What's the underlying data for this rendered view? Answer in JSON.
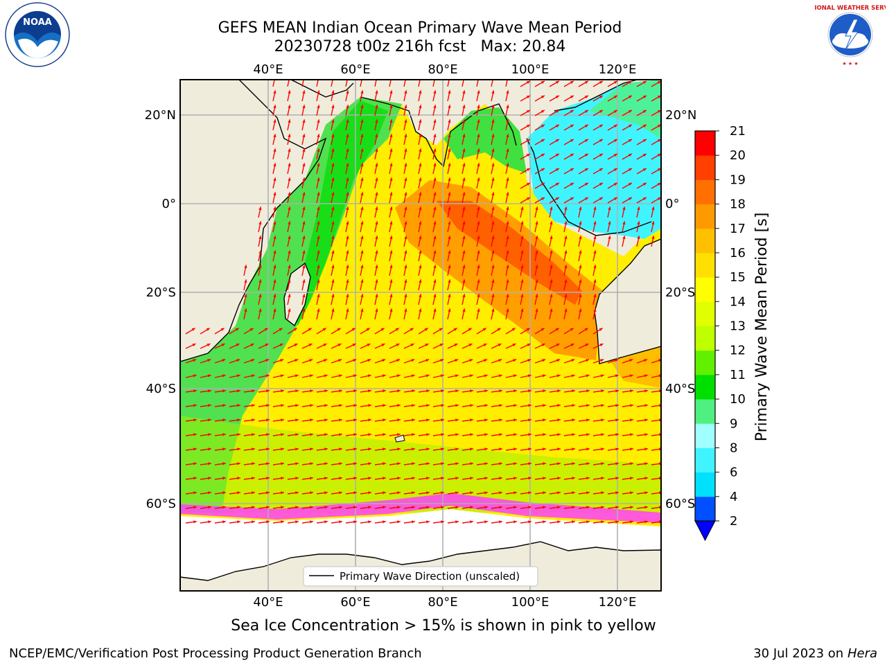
{
  "title": {
    "line1": "GEFS MEAN Indian Ocean Primary Wave Mean Period",
    "line2": "20230728 t00z 216h fcst   Max: 20.84"
  },
  "logos": {
    "left": {
      "icon": "noaa-logo",
      "text": "NOAA"
    },
    "right": {
      "icon": "national-weather-service-logo",
      "text": "NATIONAL WEATHER SERVICE"
    }
  },
  "map": {
    "lon_labels": [
      "40°E",
      "60°E",
      "80°E",
      "100°E",
      "120°E"
    ],
    "lat_labels": [
      "20°N",
      "0°",
      "20°S",
      "40°S",
      "60°S"
    ],
    "legend_label": "Primary Wave Direction (unscaled)",
    "colors": {
      "land": "#efecdc",
      "arrows": "#ff0000",
      "grid": "#b0b0b0",
      "ice_background": "#ffffff"
    }
  },
  "colorbar": {
    "label": "Primary Wave Mean Period [s]",
    "tick_labels": [
      "2",
      "4",
      "6",
      "8",
      "9",
      "10",
      "11",
      "12",
      "13",
      "14",
      "15",
      "16",
      "17",
      "18",
      "19",
      "20",
      "21"
    ],
    "colors": [
      "#0050ff",
      "#00e0ff",
      "#40f4ff",
      "#a0ffff",
      "#50f080",
      "#00e000",
      "#60f000",
      "#c0ff00",
      "#e0ff00",
      "#ffff00",
      "#ffe000",
      "#ffc000",
      "#ff9900",
      "#ff7000",
      "#ff4000",
      "#ff0000"
    ],
    "extend_color": "#0000ff"
  },
  "caption": "Sea Ice Concentration > 15% is shown in pink to yellow",
  "footer": {
    "left": "NCEP/EMC/Verification Post Processing Product Generation Branch",
    "right_date": "30 Jul 2023 on ",
    "right_host": "Hera"
  }
}
